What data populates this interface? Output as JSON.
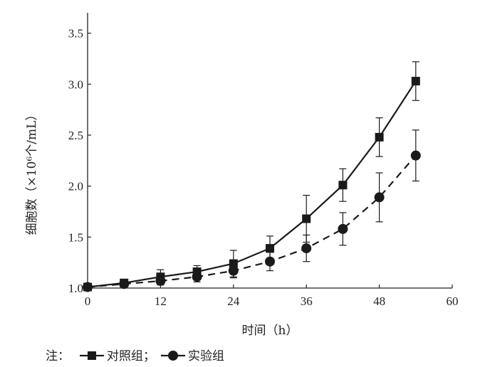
{
  "chart_data": {
    "type": "line",
    "title": "",
    "xlabel": "时间（h）",
    "ylabel": "细胞数（×10⁶个/mL）",
    "xlim": [
      0,
      60
    ],
    "ylim": [
      1.0,
      3.7
    ],
    "xticks": [
      0,
      12,
      24,
      36,
      48,
      60
    ],
    "yticks": [
      1.0,
      1.5,
      2.0,
      2.5,
      3.0,
      3.5
    ],
    "xtick_labels": [
      "0",
      "12",
      "24",
      "36",
      "48",
      "60"
    ],
    "ytick_labels": [
      "1.0",
      "1.5",
      "2.0",
      "2.5",
      "3.0",
      "3.5"
    ],
    "grid": false,
    "legend_placement": "bottom-left",
    "legend_prefix": "注：",
    "legend_sep": "；",
    "series": [
      {
        "name": "对照组",
        "marker": "square",
        "line_style": "solid",
        "color": "#1a1a1a",
        "x": [
          0,
          6,
          12,
          18,
          24,
          30,
          36,
          42,
          48,
          54
        ],
        "y": [
          1.01,
          1.05,
          1.11,
          1.16,
          1.24,
          1.39,
          1.68,
          2.01,
          2.48,
          3.03
        ],
        "err": [
          0.02,
          0.03,
          0.07,
          0.06,
          0.13,
          0.12,
          0.23,
          0.16,
          0.19,
          0.19
        ]
      },
      {
        "name": "实验组",
        "marker": "circle",
        "line_style": "dashed",
        "color": "#1a1a1a",
        "x": [
          0,
          6,
          12,
          18,
          24,
          30,
          36,
          42,
          48,
          54
        ],
        "y": [
          1.01,
          1.04,
          1.07,
          1.11,
          1.17,
          1.26,
          1.39,
          1.58,
          1.89,
          2.3
        ],
        "err": [
          0.02,
          0.02,
          0.04,
          0.05,
          0.07,
          0.09,
          0.13,
          0.16,
          0.24,
          0.25
        ]
      }
    ]
  }
}
